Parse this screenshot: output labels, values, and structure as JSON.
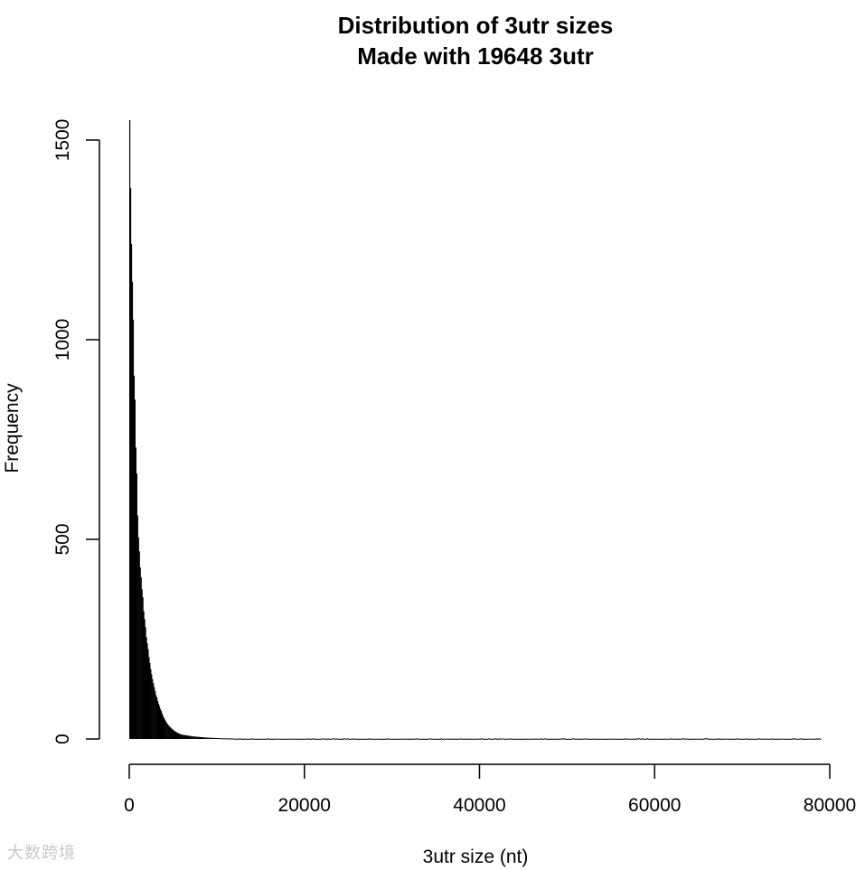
{
  "chart_data": {
    "type": "bar",
    "title": "Distribution of 3utr sizes",
    "subtitle": "Made with 19648 3utr",
    "xlabel": "3utr size (nt)",
    "ylabel": "Frequency",
    "xlim": [
      0,
      80000
    ],
    "ylim": [
      0,
      1550
    ],
    "xticks": [
      "0",
      "20000",
      "40000",
      "60000",
      "80000"
    ],
    "yticks": [
      "0",
      "500",
      "1000",
      "1500"
    ],
    "bin_width": 100,
    "values_first_bins": [
      1550,
      1380,
      1240,
      1145,
      1050,
      910,
      850,
      730,
      665,
      560,
      505,
      470,
      430,
      405,
      375,
      355,
      320,
      300,
      280,
      255,
      240,
      225,
      205,
      190,
      175,
      162,
      150,
      140,
      130,
      120,
      110,
      104,
      95,
      88,
      82,
      75,
      70,
      64,
      58,
      53,
      49,
      45,
      41,
      38,
      35,
      32,
      30,
      28,
      26,
      24,
      22,
      20,
      19,
      18,
      16,
      15,
      14,
      13,
      12,
      11
    ],
    "tail_description": "long tail of small counts continuing out to about 79000 nt",
    "bar_color": "#000000",
    "grid": false
  },
  "watermark": "大数跨境"
}
